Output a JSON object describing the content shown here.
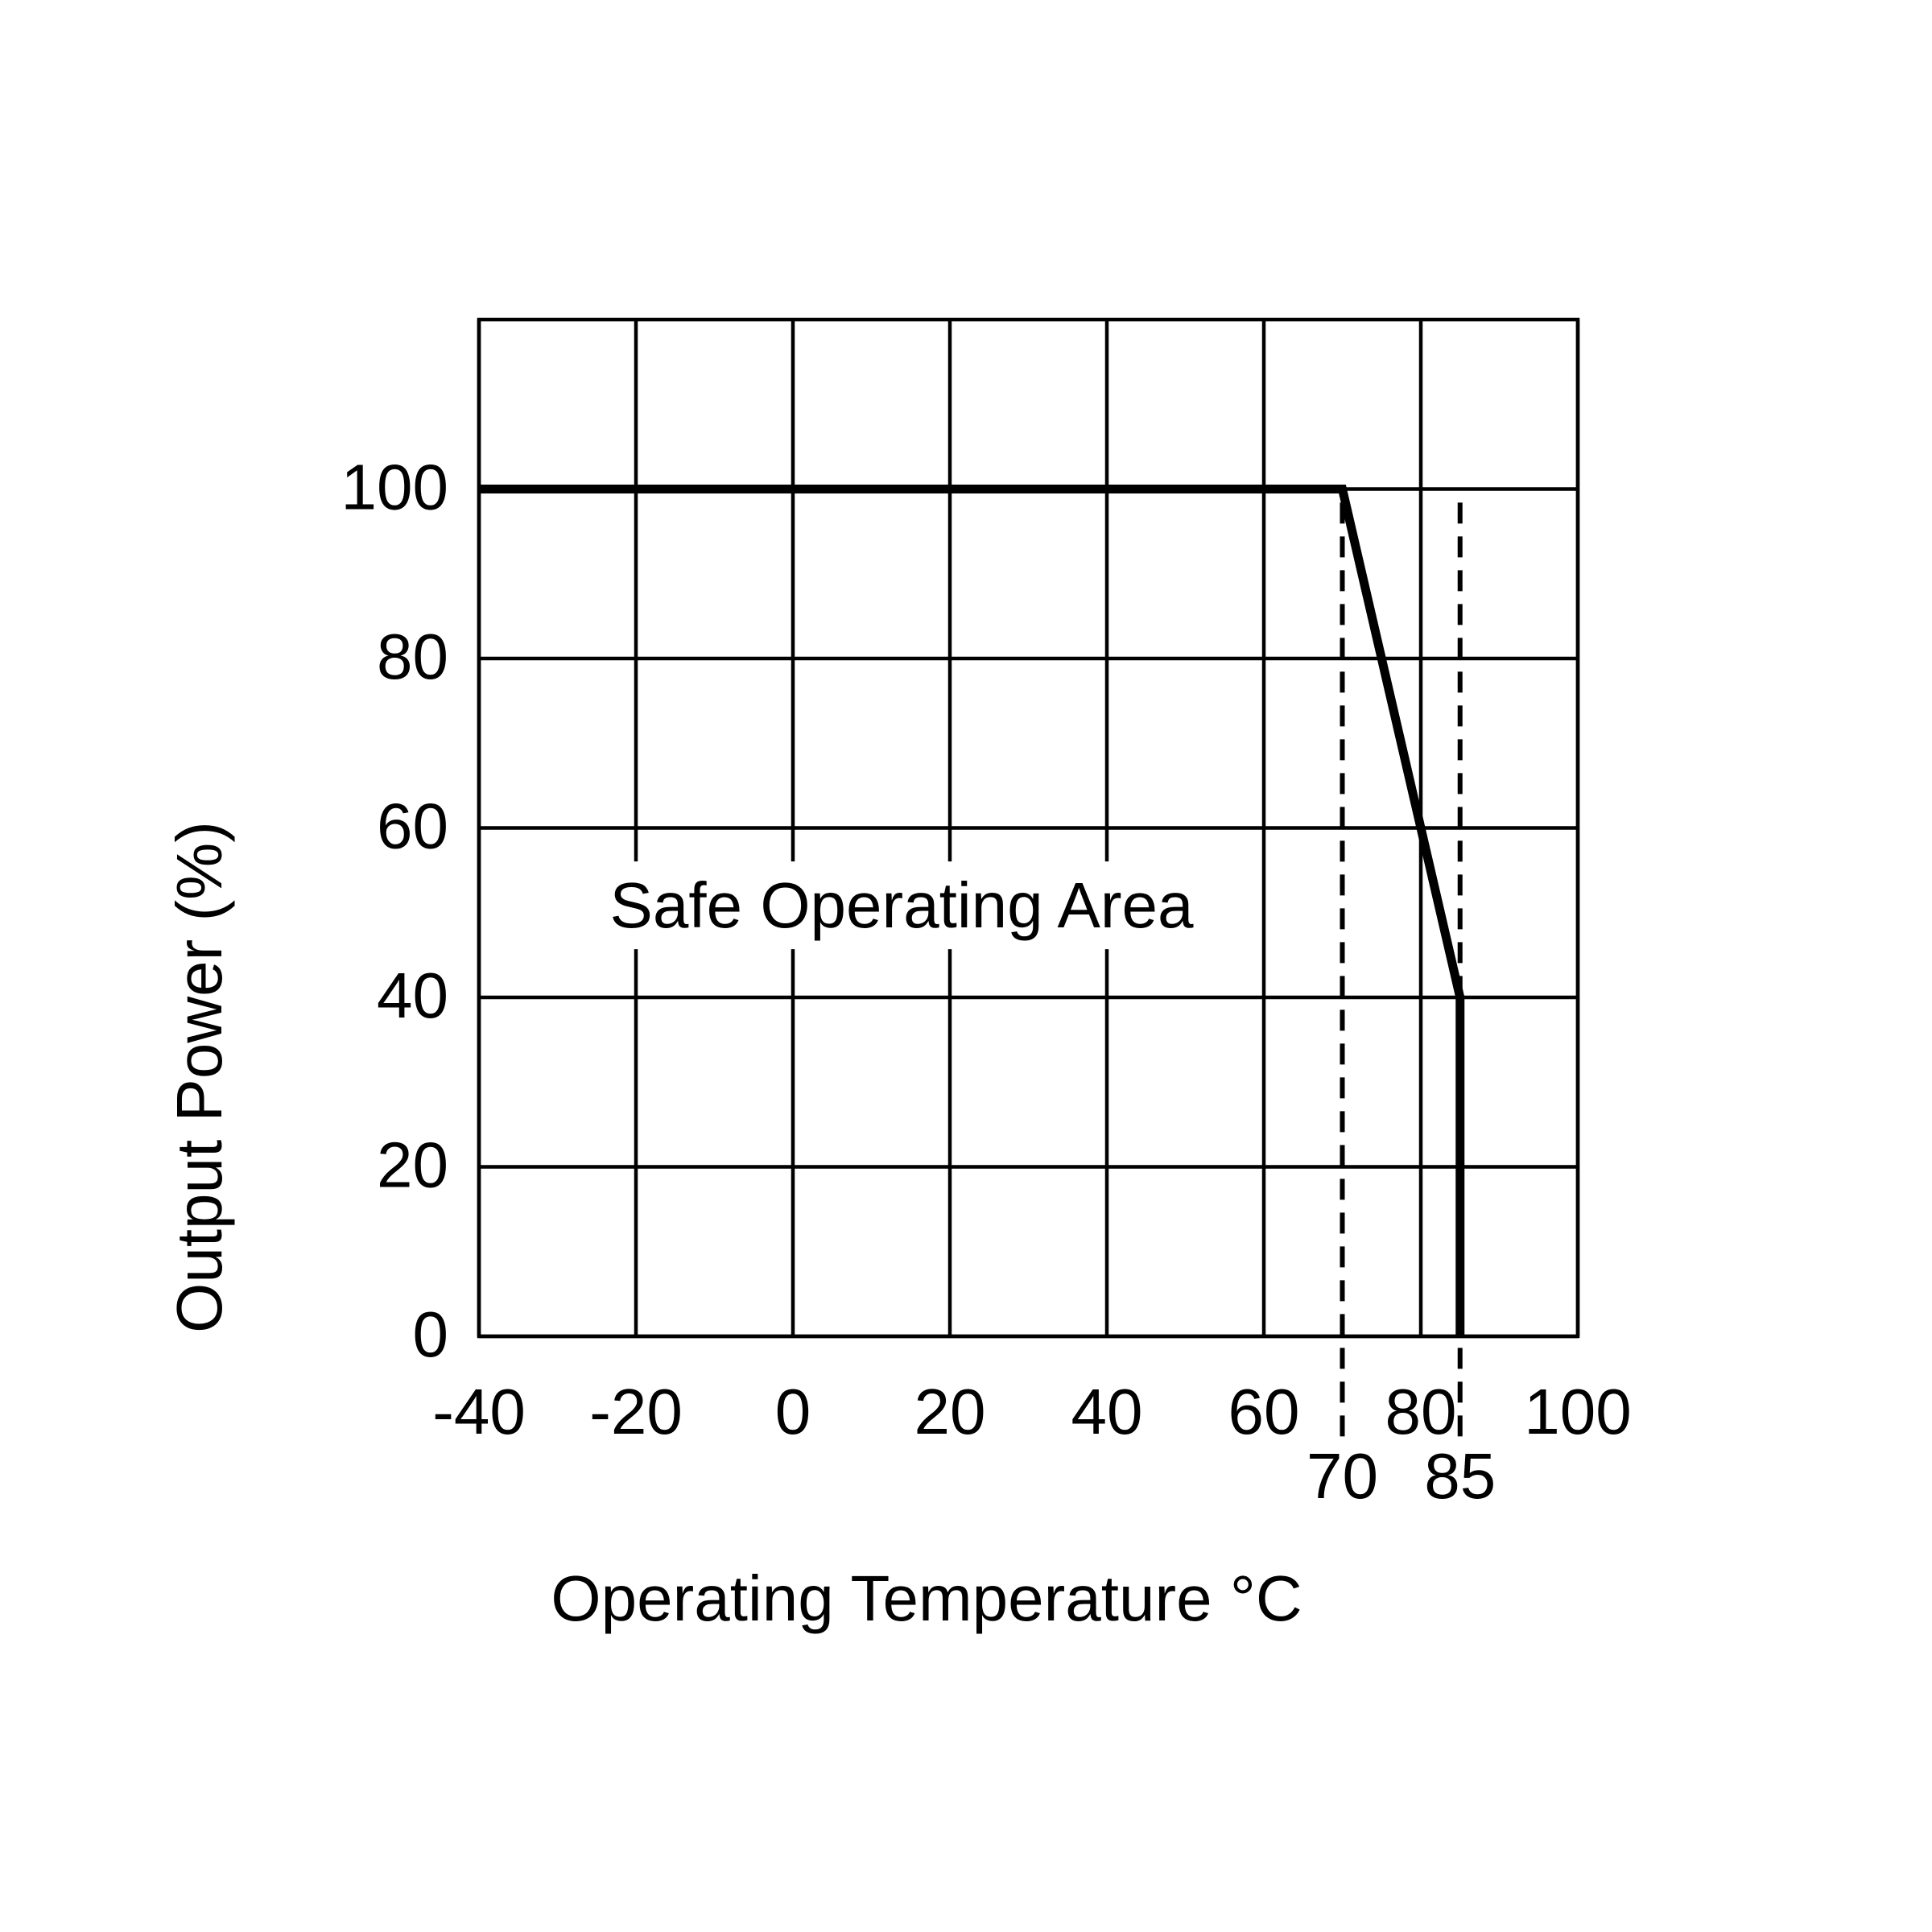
{
  "chart_data": {
    "type": "line",
    "x_label": "Operating Temperature °C",
    "y_label": "Output Power (%)",
    "annotation": "Safe Operating Area",
    "series": [
      {
        "x": [
          -40,
          70,
          85,
          85
        ],
        "values": [
          100,
          100,
          40,
          0
        ],
        "color": "#000000"
      }
    ],
    "xlim": [
      -40,
      100
    ],
    "xticks": [
      -40,
      -20,
      0,
      20,
      40,
      60,
      80,
      100
    ],
    "ylim": [
      0,
      120
    ],
    "yticks": [
      0,
      20,
      40,
      60,
      80,
      100
    ],
    "dashed_markers": [
      70,
      85
    ],
    "grid": true
  }
}
